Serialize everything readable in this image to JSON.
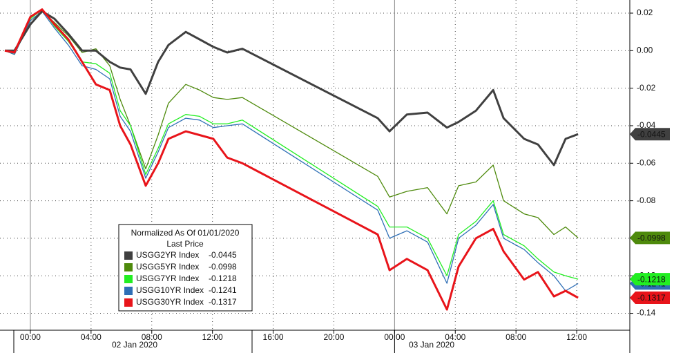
{
  "chart_data": {
    "type": "line",
    "legend": {
      "title": "Normalized As Of 01/01/2020",
      "subtitle": "Last Price"
    },
    "date_labels": [
      "02 Jan 2020",
      "03 Jan 2020"
    ],
    "x": [
      -1.68,
      -1.05,
      0,
      0.77,
      1.59,
      2.5,
      3.41,
      4.32,
      5.23,
      5.92,
      6.6,
      7.6,
      8.42,
      9.1,
      10.24,
      11.15,
      12.06,
      12.97,
      13.97,
      22.89,
      23.67,
      24.81,
      26.17,
      27.45,
      28.22,
      29.36,
      30.5,
      31.18,
      32.54,
      33.45,
      34.5,
      35.27,
      36.09
    ],
    "xlim": [
      -2,
      39.5
    ],
    "xticks": [
      {
        "value": 0,
        "label": "00:00"
      },
      {
        "value": 4,
        "label": "04:00"
      },
      {
        "value": 8,
        "label": "08:00"
      },
      {
        "value": 12,
        "label": "12:00"
      },
      {
        "value": 16,
        "label": "16:00"
      },
      {
        "value": 20,
        "label": "20:00"
      },
      {
        "value": 24,
        "label": "00:00"
      },
      {
        "value": 28,
        "label": "04:00"
      },
      {
        "value": 32,
        "label": "08:00"
      },
      {
        "value": 36,
        "label": "12:00"
      }
    ],
    "ylim": [
      -0.149,
      0.027
    ],
    "yticks": [
      0.02,
      {
        "value": 0,
        "label": "0.00"
      },
      -0.02,
      -0.04,
      -0.06,
      -0.08,
      {
        "value": -0.1,
        "label": "-0.10"
      },
      -0.12,
      -0.14
    ],
    "grid": true,
    "series": [
      {
        "name": "USGG2YR Index",
        "color": "#404040",
        "values": [
          0,
          0,
          0.014,
          0.021,
          0.017,
          0.009,
          0.0,
          0.0,
          -0.006,
          -0.009,
          -0.01,
          -0.023,
          -0.006,
          0.003,
          0.01,
          0.006,
          0.002,
          -0.001,
          0.001,
          -0.036,
          -0.043,
          -0.034,
          -0.033,
          -0.041,
          -0.038,
          -0.032,
          -0.021,
          -0.036,
          -0.047,
          -0.05,
          -0.061,
          -0.047,
          -0.0445
        ]
      },
      {
        "name": "USGG5YR Index",
        "color": "#4e8a0c",
        "values": [
          0,
          -0.002,
          0.016,
          0.021,
          0.015,
          0.008,
          -0.001,
          0.001,
          -0.008,
          -0.026,
          -0.04,
          -0.063,
          -0.045,
          -0.028,
          -0.018,
          -0.021,
          -0.025,
          -0.026,
          -0.025,
          -0.067,
          -0.078,
          -0.075,
          -0.073,
          -0.087,
          -0.072,
          -0.07,
          -0.061,
          -0.08,
          -0.087,
          -0.089,
          -0.098,
          -0.094,
          -0.0998
        ]
      },
      {
        "name": "USGG7YR Index",
        "color": "#22ee22",
        "values": [
          0,
          -0.002,
          0.017,
          0.022,
          0.013,
          0.005,
          -0.006,
          -0.007,
          -0.012,
          -0.032,
          -0.04,
          -0.066,
          -0.052,
          -0.039,
          -0.034,
          -0.035,
          -0.039,
          -0.039,
          -0.037,
          -0.083,
          -0.094,
          -0.094,
          -0.1,
          -0.12,
          -0.098,
          -0.091,
          -0.08,
          -0.098,
          -0.104,
          -0.111,
          -0.118,
          -0.12,
          -0.1218
        ]
      },
      {
        "name": "USGG10YR Index",
        "color": "#2f6fb6",
        "values": [
          0,
          -0.002,
          0.016,
          0.021,
          0.012,
          0.003,
          -0.008,
          -0.01,
          -0.015,
          -0.035,
          -0.043,
          -0.068,
          -0.054,
          -0.041,
          -0.036,
          -0.037,
          -0.041,
          -0.04,
          -0.039,
          -0.085,
          -0.1,
          -0.096,
          -0.102,
          -0.124,
          -0.1,
          -0.093,
          -0.082,
          -0.1,
          -0.106,
          -0.113,
          -0.12,
          -0.128,
          -0.1241
        ]
      },
      {
        "name": "USGG30YR Index",
        "color": "#e8141a",
        "values": [
          0,
          -0.001,
          0.018,
          0.022,
          0.014,
          0.006,
          -0.006,
          -0.018,
          -0.021,
          -0.04,
          -0.05,
          -0.072,
          -0.06,
          -0.047,
          -0.043,
          -0.045,
          -0.047,
          -0.057,
          -0.06,
          -0.098,
          -0.117,
          -0.111,
          -0.117,
          -0.138,
          -0.115,
          -0.1,
          -0.095,
          -0.107,
          -0.122,
          -0.118,
          -0.131,
          -0.128,
          -0.1317
        ]
      }
    ]
  }
}
